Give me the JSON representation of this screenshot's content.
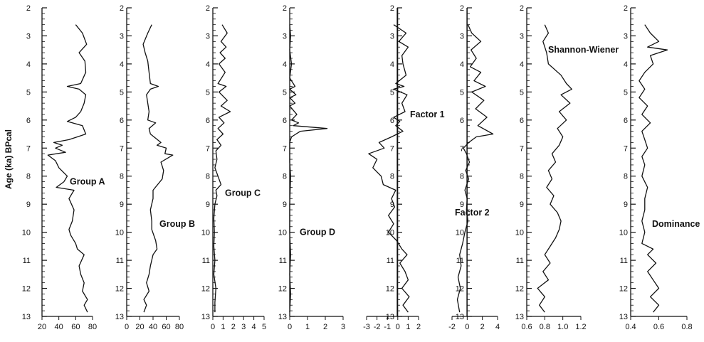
{
  "chart_data": {
    "type": "line",
    "orientation": "vertical-stratigraphic",
    "y_axis": {
      "label": "Age (ka) BPcal",
      "range": [
        2,
        13
      ],
      "ticks": [
        "2",
        "3",
        "4",
        "5",
        "6",
        "7",
        "8",
        "9",
        "10",
        "11",
        "12",
        "13"
      ],
      "minor_step": 0.2,
      "inverted": true
    },
    "panels": [
      {
        "name": "Group A",
        "xlim": [
          20,
          80
        ],
        "xticks": [
          "20",
          "40",
          "60",
          "80"
        ],
        "series": [
          [
            2.6,
            60
          ],
          [
            2.9,
            68
          ],
          [
            3.3,
            73
          ],
          [
            3.6,
            64
          ],
          [
            3.9,
            71
          ],
          [
            4.3,
            72
          ],
          [
            4.7,
            66
          ],
          [
            4.8,
            50
          ],
          [
            4.9,
            64
          ],
          [
            5.1,
            72
          ],
          [
            5.4,
            70
          ],
          [
            5.7,
            66
          ],
          [
            5.9,
            60
          ],
          [
            6.05,
            50
          ],
          [
            6.2,
            68
          ],
          [
            6.5,
            72
          ],
          [
            6.6,
            62
          ],
          [
            6.7,
            52
          ],
          [
            6.8,
            34
          ],
          [
            6.9,
            44
          ],
          [
            7.0,
            36
          ],
          [
            7.15,
            48
          ],
          [
            7.25,
            27
          ],
          [
            7.45,
            36
          ],
          [
            7.7,
            40
          ],
          [
            8.0,
            50
          ],
          [
            8.2,
            46
          ],
          [
            8.4,
            37
          ],
          [
            8.5,
            58
          ],
          [
            8.8,
            52
          ],
          [
            9.2,
            58
          ],
          [
            9.6,
            56
          ],
          [
            9.9,
            52
          ],
          [
            10.1,
            54
          ],
          [
            10.4,
            60
          ],
          [
            10.6,
            62
          ],
          [
            10.8,
            70
          ],
          [
            11.2,
            64
          ],
          [
            11.5,
            66
          ],
          [
            11.8,
            70
          ],
          [
            12.1,
            68
          ],
          [
            12.4,
            74
          ],
          [
            12.6,
            70
          ],
          [
            12.85,
            74
          ]
        ],
        "label_position": "8.2"
      },
      {
        "name": "Group B",
        "xlim": [
          0,
          80
        ],
        "xticks": [
          "0",
          "20",
          "40",
          "60",
          "80"
        ],
        "series": [
          [
            2.6,
            38
          ],
          [
            2.9,
            32
          ],
          [
            3.3,
            25
          ],
          [
            3.6,
            28
          ],
          [
            3.9,
            32
          ],
          [
            4.3,
            34
          ],
          [
            4.7,
            36
          ],
          [
            4.8,
            48
          ],
          [
            4.9,
            36
          ],
          [
            5.1,
            30
          ],
          [
            5.4,
            32
          ],
          [
            5.7,
            34
          ],
          [
            6.0,
            32
          ],
          [
            6.1,
            44
          ],
          [
            6.3,
            34
          ],
          [
            6.5,
            36
          ],
          [
            6.8,
            52
          ],
          [
            6.9,
            46
          ],
          [
            7.0,
            60
          ],
          [
            7.2,
            58
          ],
          [
            7.25,
            70
          ],
          [
            7.5,
            52
          ],
          [
            7.8,
            56
          ],
          [
            8.1,
            54
          ],
          [
            8.5,
            40
          ],
          [
            8.8,
            40
          ],
          [
            9.2,
            36
          ],
          [
            9.6,
            38
          ],
          [
            9.9,
            38
          ],
          [
            10.3,
            44
          ],
          [
            10.6,
            46
          ],
          [
            10.8,
            40
          ],
          [
            11.2,
            36
          ],
          [
            11.5,
            34
          ],
          [
            11.8,
            30
          ],
          [
            12.1,
            34
          ],
          [
            12.4,
            26
          ],
          [
            12.6,
            30
          ],
          [
            12.85,
            26
          ]
        ],
        "label_position": "9.7"
      },
      {
        "name": "Group C",
        "xlim": [
          0,
          5
        ],
        "xticks": [
          "0",
          "1",
          "2",
          "3",
          "4",
          "5"
        ],
        "series": [
          [
            2.6,
            0.9
          ],
          [
            2.9,
            1.4
          ],
          [
            3.2,
            0.8
          ],
          [
            3.4,
            1.3
          ],
          [
            3.6,
            0.7
          ],
          [
            3.8,
            1.2
          ],
          [
            4.0,
            0.6
          ],
          [
            4.3,
            1.2
          ],
          [
            4.7,
            0.5
          ],
          [
            4.8,
            1.3
          ],
          [
            5.0,
            0.6
          ],
          [
            5.3,
            1.4
          ],
          [
            5.5,
            0.8
          ],
          [
            5.7,
            1.7
          ],
          [
            5.9,
            0.6
          ],
          [
            6.1,
            1.1
          ],
          [
            6.3,
            0.5
          ],
          [
            6.5,
            1.0
          ],
          [
            6.7,
            0.4
          ],
          [
            6.9,
            0.8
          ],
          [
            7.1,
            0.3
          ],
          [
            7.4,
            0.4
          ],
          [
            7.7,
            0.2
          ],
          [
            8.0,
            0.5
          ],
          [
            8.3,
            0.8
          ],
          [
            8.5,
            0.3
          ],
          [
            8.7,
            0.4
          ],
          [
            9.0,
            0.2
          ],
          [
            9.5,
            0.1
          ],
          [
            10.0,
            0.15
          ],
          [
            10.5,
            0.1
          ],
          [
            11.0,
            0.2
          ],
          [
            11.5,
            0.1
          ],
          [
            12.0,
            0.3
          ],
          [
            12.5,
            0.2
          ],
          [
            12.85,
            0.2
          ]
        ],
        "label_position": "8.6"
      },
      {
        "name": "Group D",
        "xlim": [
          0,
          3
        ],
        "xticks": [
          "0",
          "1",
          "2",
          "3"
        ],
        "series": [
          [
            2.6,
            0
          ],
          [
            3.0,
            0.05
          ],
          [
            3.5,
            0
          ],
          [
            4.0,
            0.1
          ],
          [
            4.5,
            0
          ],
          [
            4.8,
            0.3
          ],
          [
            4.9,
            0
          ],
          [
            5.1,
            0.35
          ],
          [
            5.2,
            0
          ],
          [
            5.4,
            0.3
          ],
          [
            5.5,
            0
          ],
          [
            5.8,
            0.4
          ],
          [
            6.0,
            0.1
          ],
          [
            6.1,
            0.5
          ],
          [
            6.2,
            0.2
          ],
          [
            6.3,
            2.1
          ],
          [
            6.4,
            0.6
          ],
          [
            6.6,
            0.1
          ],
          [
            6.8,
            0
          ],
          [
            7.5,
            0
          ],
          [
            8.0,
            0.05
          ],
          [
            9.0,
            0
          ],
          [
            10.0,
            0
          ],
          [
            10.8,
            0.05
          ],
          [
            11.5,
            0
          ],
          [
            12.2,
            0.05
          ],
          [
            12.85,
            0
          ]
        ],
        "label_position": "10.0"
      },
      {
        "name": "Factor 1",
        "xlim": [
          -3,
          2
        ],
        "xticks": [
          "-3",
          "-2",
          "-1",
          "0",
          "1",
          "2"
        ],
        "series": [
          [
            2.6,
            -0.4
          ],
          [
            2.9,
            0.8
          ],
          [
            3.2,
            0.1
          ],
          [
            3.4,
            1.0
          ],
          [
            3.7,
            0.4
          ],
          [
            4.0,
            0.5
          ],
          [
            4.4,
            0.8
          ],
          [
            4.7,
            -0.2
          ],
          [
            4.8,
            0.6
          ],
          [
            4.9,
            -0.4
          ],
          [
            5.1,
            0.9
          ],
          [
            5.4,
            0.4
          ],
          [
            5.7,
            0.7
          ],
          [
            5.9,
            -0.4
          ],
          [
            6.05,
            0.2
          ],
          [
            6.2,
            -0.2
          ],
          [
            6.4,
            0.5
          ],
          [
            6.6,
            -0.6
          ],
          [
            6.8,
            -1.8
          ],
          [
            7.0,
            -1.3
          ],
          [
            7.2,
            -2.8
          ],
          [
            7.4,
            -2.0
          ],
          [
            7.7,
            -2.4
          ],
          [
            8.0,
            -1.6
          ],
          [
            8.3,
            -1.4
          ],
          [
            8.5,
            -0.2
          ],
          [
            8.8,
            -0.6
          ],
          [
            9.1,
            -0.3
          ],
          [
            9.4,
            -0.9
          ],
          [
            9.7,
            -0.4
          ],
          [
            10.0,
            -0.9
          ],
          [
            10.3,
            -0.1
          ],
          [
            10.6,
            0.4
          ],
          [
            10.8,
            0.9
          ],
          [
            11.1,
            0.2
          ],
          [
            11.4,
            0.7
          ],
          [
            11.7,
            1.0
          ],
          [
            12.0,
            0.4
          ],
          [
            12.3,
            1.1
          ],
          [
            12.6,
            0.5
          ],
          [
            12.85,
            1.0
          ]
        ],
        "label_position": "5.8"
      },
      {
        "name": "Factor 2",
        "xlim": [
          -2,
          4
        ],
        "xticks": [
          "-2",
          "0",
          "2",
          "4"
        ],
        "series": [
          [
            2.6,
            0.1
          ],
          [
            2.9,
            0.6
          ],
          [
            3.2,
            1.8
          ],
          [
            3.5,
            0.5
          ],
          [
            3.8,
            1.2
          ],
          [
            4.1,
            0.4
          ],
          [
            4.3,
            1.8
          ],
          [
            4.6,
            0.9
          ],
          [
            4.8,
            2.4
          ],
          [
            5.0,
            0.6
          ],
          [
            5.3,
            2.2
          ],
          [
            5.6,
            1.1
          ],
          [
            5.9,
            2.6
          ],
          [
            6.2,
            1.4
          ],
          [
            6.5,
            3.4
          ],
          [
            6.6,
            1.2
          ],
          [
            6.8,
            0.2
          ],
          [
            7.0,
            -0.5
          ],
          [
            7.2,
            -0.1
          ],
          [
            7.5,
            0.3
          ],
          [
            7.8,
            -0.2
          ],
          [
            8.1,
            0.2
          ],
          [
            8.5,
            -0.3
          ],
          [
            8.8,
            0
          ],
          [
            9.2,
            -0.1
          ],
          [
            9.6,
            0.1
          ],
          [
            10.0,
            -0.3
          ],
          [
            10.4,
            -0.6
          ],
          [
            10.8,
            -1.0
          ],
          [
            11.2,
            -0.8
          ],
          [
            11.6,
            -1.2
          ],
          [
            12.0,
            -0.9
          ],
          [
            12.4,
            -1.3
          ],
          [
            12.85,
            -1.0
          ]
        ],
        "label_position": "9.3"
      },
      {
        "name": "Shannon-Wiener",
        "xlim": [
          0.6,
          1.2
        ],
        "xticks": [
          "0.6",
          "0.8",
          "1.0",
          "1.2"
        ],
        "series": [
          [
            2.6,
            0.8
          ],
          [
            2.9,
            0.84
          ],
          [
            3.2,
            0.78
          ],
          [
            3.6,
            0.82
          ],
          [
            4.0,
            0.84
          ],
          [
            4.4,
            0.98
          ],
          [
            4.7,
            1.04
          ],
          [
            4.9,
            1.1
          ],
          [
            5.1,
            0.98
          ],
          [
            5.4,
            1.08
          ],
          [
            5.7,
            0.96
          ],
          [
            6.0,
            1.04
          ],
          [
            6.3,
            0.94
          ],
          [
            6.6,
            1.0
          ],
          [
            6.9,
            0.96
          ],
          [
            7.2,
            0.88
          ],
          [
            7.5,
            0.92
          ],
          [
            7.8,
            0.84
          ],
          [
            8.1,
            0.88
          ],
          [
            8.4,
            0.82
          ],
          [
            8.7,
            0.9
          ],
          [
            9.0,
            0.86
          ],
          [
            9.3,
            0.94
          ],
          [
            9.6,
            0.98
          ],
          [
            9.9,
            0.96
          ],
          [
            10.2,
            0.92
          ],
          [
            10.5,
            0.86
          ],
          [
            10.8,
            0.8
          ],
          [
            11.1,
            0.86
          ],
          [
            11.4,
            0.78
          ],
          [
            11.7,
            0.84
          ],
          [
            12.0,
            0.72
          ],
          [
            12.3,
            0.8
          ],
          [
            12.6,
            0.74
          ],
          [
            12.85,
            0.8
          ]
        ],
        "label_position": "3.5"
      },
      {
        "name": "Dominance",
        "xlim": [
          0.4,
          0.8
        ],
        "xticks": [
          "0.4",
          "0.6",
          "0.8"
        ],
        "series": [
          [
            2.6,
            0.5
          ],
          [
            2.9,
            0.54
          ],
          [
            3.2,
            0.6
          ],
          [
            3.4,
            0.52
          ],
          [
            3.5,
            0.66
          ],
          [
            3.7,
            0.54
          ],
          [
            4.0,
            0.56
          ],
          [
            4.3,
            0.5
          ],
          [
            4.6,
            0.46
          ],
          [
            4.9,
            0.5
          ],
          [
            5.2,
            0.46
          ],
          [
            5.5,
            0.52
          ],
          [
            5.8,
            0.48
          ],
          [
            6.1,
            0.54
          ],
          [
            6.4,
            0.48
          ],
          [
            6.7,
            0.5
          ],
          [
            7.0,
            0.52
          ],
          [
            7.3,
            0.48
          ],
          [
            7.6,
            0.5
          ],
          [
            8.0,
            0.48
          ],
          [
            8.4,
            0.52
          ],
          [
            8.8,
            0.5
          ],
          [
            9.2,
            0.5
          ],
          [
            9.6,
            0.48
          ],
          [
            10.0,
            0.5
          ],
          [
            10.4,
            0.48
          ],
          [
            10.6,
            0.56
          ],
          [
            10.8,
            0.52
          ],
          [
            11.1,
            0.58
          ],
          [
            11.4,
            0.52
          ],
          [
            11.7,
            0.56
          ],
          [
            12.0,
            0.6
          ],
          [
            12.3,
            0.54
          ],
          [
            12.6,
            0.6
          ],
          [
            12.85,
            0.56
          ]
        ],
        "label_position": "9.7"
      }
    ],
    "grid": false,
    "legend": "none"
  }
}
